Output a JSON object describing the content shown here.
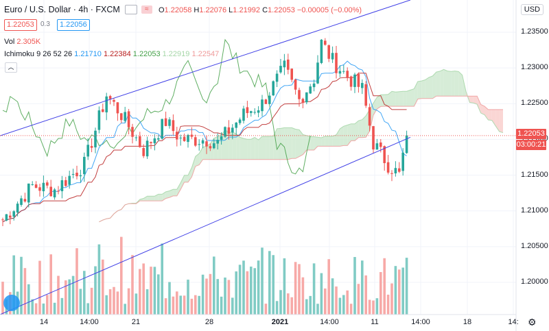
{
  "header": {
    "symbol": "Euro / U.S. Dollar · 4h · FXCM",
    "approx_label": "≈",
    "ohlc": [
      {
        "k": "O",
        "v": "1.22058"
      },
      {
        "k": "H",
        "v": "1.22076"
      },
      {
        "k": "L",
        "v": "1.21992"
      },
      {
        "k": "C",
        "v": "1.22053"
      }
    ],
    "change": "−0.00005 (−0.00%)",
    "bid": "1.22053",
    "spread": "0.3",
    "ask": "1.22056",
    "volume_label": "Vol",
    "volume_value": "2.305K",
    "ichimoku_label": "Ichimoku 9 26 52 26",
    "ichimoku_values": [
      "1.21710",
      "1.22384",
      "1.22053",
      "1.22919",
      "1.22547"
    ],
    "collapse_icon": "chevron-up-icon"
  },
  "axis": {
    "currency": "USD",
    "price_ticks": [
      "1.23500",
      "1.23000",
      "1.22500",
      "1.22000",
      "1.21500",
      "1.21000",
      "1.20500",
      "1.20000"
    ],
    "time_ticks": [
      "14",
      "14:00",
      "21",
      "28",
      "2021",
      "14:00",
      "11",
      "14:00",
      "18",
      "14:"
    ],
    "last_price": "1.22053",
    "countdown": "03:00:21"
  },
  "colors": {
    "up": "#26a69a",
    "down": "#ef5350",
    "vol_up": "#80cbc4",
    "vol_down": "#f7a9a7",
    "kumo_bull": "#c8e6c9",
    "kumo_bear": "#f8c8c6",
    "channel": "#3f3fe6",
    "conversion": "#2196f3",
    "base": "#b71c1c",
    "lagging": "#43a047"
  },
  "chart_data": {
    "type": "candlestick",
    "title": "Euro / U.S. Dollar · 4h · FXCM",
    "xlabel": "",
    "ylabel": "",
    "ylim": [
      1.1955,
      1.2395
    ],
    "bars": 110,
    "open": 1.2088,
    "close": 1.22053,
    "anchors": [
      [
        0,
        1.2088
      ],
      [
        8,
        1.2135
      ],
      [
        14,
        1.213
      ],
      [
        22,
        1.2165
      ],
      [
        28,
        1.2262
      ],
      [
        32,
        1.2235
      ],
      [
        38,
        1.2185
      ],
      [
        44,
        1.2225
      ],
      [
        48,
        1.22
      ],
      [
        55,
        1.22
      ],
      [
        58,
        1.2195
      ],
      [
        65,
        1.2235
      ],
      [
        70,
        1.225
      ],
      [
        76,
        1.23
      ],
      [
        80,
        1.2255
      ],
      [
        84,
        1.2285
      ],
      [
        86,
        1.2335
      ],
      [
        89,
        1.231
      ],
      [
        93,
        1.2288
      ],
      [
        97,
        1.227
      ],
      [
        100,
        1.2195
      ],
      [
        104,
        1.2165
      ],
      [
        107,
        1.215
      ],
      [
        109,
        1.22053
      ]
    ],
    "kumo_extends": 26,
    "volume_max_k": 4.6,
    "channel": {
      "upper": [
        [
          0,
          1.2205
        ],
        [
          110,
          1.2395
        ]
      ],
      "lower": [
        [
          0,
          1.1955
        ],
        [
          110,
          1.2203
        ]
      ]
    },
    "time_ticks": [
      "14",
      "14:00",
      "21",
      "28",
      "2021",
      "14:00",
      "11",
      "14:00",
      "18",
      "14:"
    ],
    "price_ticks": [
      1.235,
      1.23,
      1.225,
      1.22,
      1.215,
      1.21,
      1.205,
      1.2
    ],
    "last": 1.22053
  }
}
